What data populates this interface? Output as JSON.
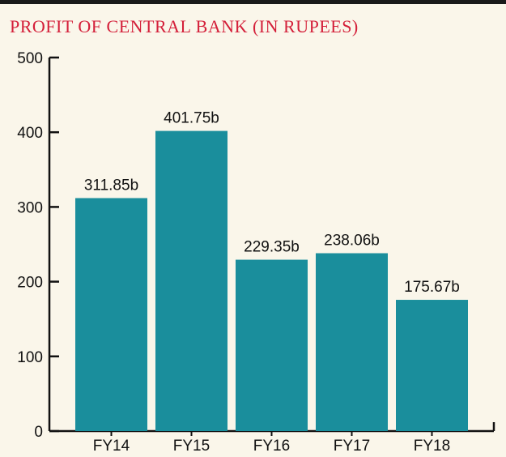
{
  "title": "PROFIT OF CENTRAL BANK (IN RUPEES)",
  "colors": {
    "bar": "#1a8e9c",
    "title": "#d4203a",
    "axis": "#111111",
    "background": "#faf6ea"
  },
  "chart_data": {
    "type": "bar",
    "title": "PROFIT OF CENTRAL BANK (IN RUPEES)",
    "categories": [
      "FY14",
      "FY15",
      "FY16",
      "FY17",
      "FY18"
    ],
    "values": [
      311.85,
      401.75,
      229.35,
      238.06,
      175.67
    ],
    "data_labels": [
      "311.85b",
      "401.75b",
      "229.35b",
      "238.06b",
      "175.67b"
    ],
    "ylim": [
      0,
      500
    ],
    "yticks": [
      0,
      100,
      200,
      300,
      400,
      500
    ],
    "xlabel": "",
    "ylabel": "",
    "grid": false
  }
}
